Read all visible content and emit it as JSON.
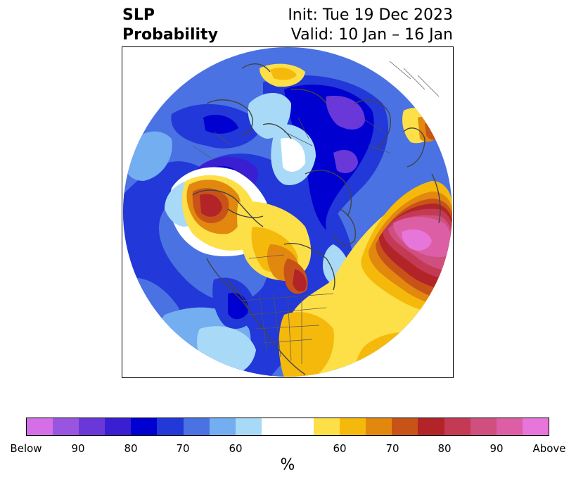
{
  "header": {
    "title_line1": "SLP",
    "title_line2": "Probability",
    "init_text": "Init: Tue 19 Dec 2023",
    "valid_text": "Valid: 10 Jan – 16 Jan"
  },
  "colorbar": {
    "unit_label": "%",
    "below_colors": [
      "#d46fe6",
      "#9a55e0",
      "#6a38d8",
      "#3a1ed2",
      "#0000d0",
      "#2238d8",
      "#4a72e2",
      "#72aef0",
      "#a8daf8"
    ],
    "neutral_color": "#ffffff",
    "above_colors": [
      "#fde047",
      "#f5b90c",
      "#e2880e",
      "#c85318",
      "#b22428",
      "#c43a54",
      "#cf4f7e",
      "#dc5fa6",
      "#e676da"
    ],
    "tick_labels": [
      "Below",
      "90",
      "80",
      "70",
      "60",
      "60",
      "70",
      "80",
      "90",
      "Above"
    ]
  },
  "map": {
    "projection": "north-polar-stereographic",
    "field": "sea-level-pressure probability"
  }
}
